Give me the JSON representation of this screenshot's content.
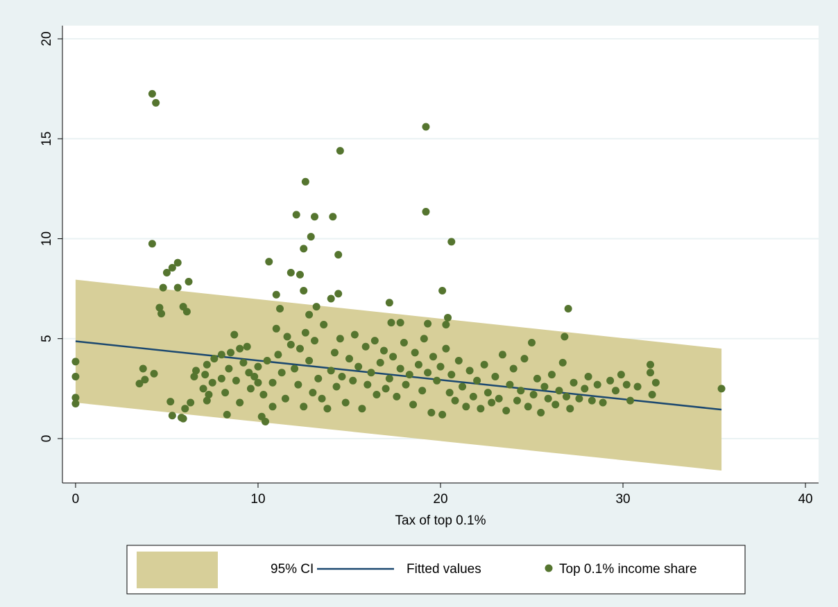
{
  "chart_data": {
    "type": "scatter",
    "xlabel": "Tax of top 0.1%",
    "xlim": [
      -0.72,
      40.72
    ],
    "ylim": [
      -2.22,
      20.66
    ],
    "xticks": [
      0,
      10,
      20,
      30,
      40
    ],
    "yticks": [
      0,
      5,
      10,
      15,
      20
    ],
    "grid": true,
    "legend": "bottom",
    "series": [
      {
        "name": "95% CI",
        "type": "area",
        "color": "#d7cf99",
        "x": [
          0,
          35.4
        ],
        "lower": [
          1.8,
          -1.6
        ],
        "upper": [
          7.95,
          4.5
        ]
      },
      {
        "name": "Fitted values",
        "type": "line",
        "color": "#1a476f",
        "x": [
          0,
          35.4
        ],
        "values": [
          4.87,
          1.45
        ]
      },
      {
        "name": "Top 0.1% income share",
        "type": "scatter",
        "color": "#55752f",
        "x": [
          4.2,
          4.4,
          19.2,
          14.5,
          12.6,
          19.2,
          12.1,
          13.1,
          14.1,
          12.9,
          4.2,
          20.6,
          12.5,
          14.4,
          10.6,
          5.6,
          5.3,
          5,
          11.8,
          12.3,
          6.2,
          4.8,
          5.6,
          20.1,
          12.5,
          14.4,
          11,
          14,
          17.2,
          27,
          4.6,
          5.9,
          6.1,
          4.7,
          11.2,
          13.2,
          12.8,
          20.4,
          19.3,
          20.3,
          17.3,
          17.8,
          26.8,
          0,
          0,
          0,
          0,
          3.5,
          3.7,
          3.8,
          4.3,
          5.2,
          5.3,
          5.8,
          5.9,
          6.0,
          6.3,
          6.6,
          6.5,
          7.2,
          7.3,
          7.5,
          8,
          8.3,
          8.7,
          9,
          9.5,
          10,
          10.2,
          10.4,
          10.8,
          7.0,
          7.1,
          7.2,
          7.6,
          8.0,
          8.2,
          8.4,
          8.5,
          8.8,
          9.0,
          9.2,
          9.4,
          9.6,
          9.8,
          10.0,
          10.3,
          10.5,
          10.8,
          11.0,
          11.1,
          11.3,
          11.5,
          11.6,
          11.8,
          12.0,
          12.2,
          12.3,
          12.5,
          12.6,
          12.8,
          13.0,
          13.1,
          13.3,
          13.5,
          13.6,
          13.8,
          14.0,
          14.2,
          14.3,
          14.5,
          14.6,
          14.8,
          15.0,
          15.2,
          15.3,
          15.5,
          15.7,
          15.9,
          16.0,
          16.2,
          16.4,
          16.5,
          16.7,
          16.9,
          17.0,
          17.2,
          17.4,
          17.6,
          17.8,
          18.0,
          18.1,
          18.3,
          18.5,
          18.6,
          18.8,
          19.0,
          19.1,
          19.3,
          19.5,
          19.6,
          19.8,
          20.0,
          20.1,
          20.3,
          20.5,
          20.6,
          20.8,
          21.0,
          21.2,
          21.4,
          21.6,
          21.8,
          22.0,
          22.2,
          22.4,
          22.6,
          22.8,
          23.0,
          23.2,
          23.4,
          23.6,
          23.8,
          24.0,
          24.2,
          24.4,
          24.6,
          24.8,
          25.0,
          25.1,
          25.3,
          25.5,
          25.7,
          25.9,
          26.1,
          26.3,
          26.5,
          26.7,
          26.9,
          27.1,
          27.3,
          27.6,
          27.9,
          28.1,
          28.3,
          28.6,
          28.9,
          29.3,
          29.6,
          29.9,
          30.2,
          30.4,
          30.8,
          31.5,
          31.5,
          31.6,
          31.8,
          35.4
        ],
        "values": [
          17.25,
          16.8,
          15.6,
          14.4,
          12.85,
          11.35,
          11.2,
          11.1,
          11.1,
          10.1,
          9.75,
          9.85,
          9.5,
          9.2,
          8.85,
          8.8,
          8.55,
          8.3,
          8.3,
          8.2,
          7.85,
          7.55,
          7.55,
          7.4,
          7.4,
          7.25,
          7.2,
          7,
          6.8,
          6.5,
          6.55,
          6.6,
          6.35,
          6.25,
          6.5,
          6.6,
          6.2,
          6.05,
          5.75,
          5.7,
          5.8,
          5.8,
          5.1,
          3.85,
          3.1,
          2.05,
          1.75,
          2.75,
          3.5,
          2.95,
          3.25,
          1.85,
          1.15,
          1.05,
          1.0,
          1.5,
          1.8,
          3.4,
          3.1,
          3.7,
          2.2,
          2.8,
          4.2,
          1.2,
          5.2,
          4.5,
          3.3,
          2.8,
          1.1,
          0.85,
          1.6,
          2.5,
          3.2,
          1.9,
          4.0,
          3.0,
          2.3,
          3.5,
          4.3,
          2.9,
          1.8,
          3.8,
          4.6,
          2.5,
          3.1,
          3.6,
          2.2,
          3.9,
          2.8,
          5.5,
          4.2,
          3.3,
          2.0,
          5.1,
          4.7,
          3.5,
          2.7,
          4.5,
          1.6,
          5.3,
          3.9,
          2.3,
          4.9,
          3.0,
          2.0,
          5.7,
          1.5,
          3.4,
          4.3,
          2.6,
          5.0,
          3.1,
          1.8,
          4.0,
          2.9,
          5.2,
          3.6,
          1.5,
          4.6,
          2.7,
          3.3,
          4.9,
          2.2,
          3.8,
          4.4,
          2.5,
          3.0,
          4.1,
          2.1,
          3.5,
          4.8,
          2.7,
          3.2,
          1.7,
          4.3,
          3.7,
          2.4,
          5.0,
          3.3,
          1.3,
          4.1,
          2.9,
          3.6,
          1.2,
          4.5,
          2.3,
          3.2,
          1.9,
          3.9,
          2.6,
          1.6,
          3.4,
          2.1,
          2.9,
          1.5,
          3.7,
          2.3,
          1.8,
          3.1,
          2.0,
          4.2,
          1.4,
          2.7,
          3.5,
          1.9,
          2.4,
          4.0,
          1.6,
          4.8,
          2.2,
          3.0,
          1.3,
          2.6,
          2.0,
          3.2,
          1.7,
          2.4,
          3.8,
          2.1,
          1.5,
          2.8,
          2.0,
          2.5,
          3.1,
          1.9,
          2.7,
          1.8,
          2.9,
          2.4,
          3.2,
          2.7,
          1.9,
          2.6,
          3.7,
          3.3,
          2.2,
          2.8,
          2.5
        ]
      }
    ]
  }
}
